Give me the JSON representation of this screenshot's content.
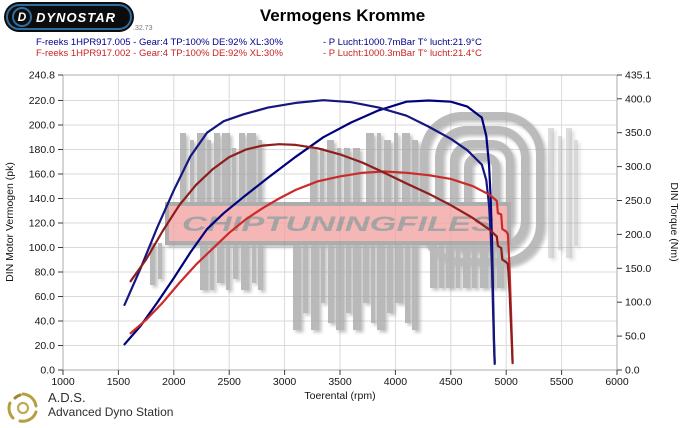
{
  "header": {
    "logo": {
      "wordmark": "DYNOSTAR",
      "first_letter": "D",
      "version": ".32.73"
    },
    "title": "Vermogens Kromme",
    "legend": [
      {
        "run": "F-reeks 1HPR917.005 - Gear:4 TP:100% DE:92% XL:30%",
        "conditions": "- P Lucht:1000.7mBar T° lucht:21.9°C",
        "color": "#00008b"
      },
      {
        "run": "F-reeks 1HPR917.002 - Gear:4 TP:100% DE:92% XL:30%",
        "conditions": "- P Lucht:1000.3mBar T° lucht:21.4°C",
        "color": "#cc2222"
      }
    ]
  },
  "watermark": {
    "text": "CHIPTUNINGFILES"
  },
  "footer": {
    "abbr": "A.D.S.",
    "name": "Advanced Dyno Station"
  },
  "chart_data": {
    "type": "line",
    "title": "Vermogens Kromme",
    "xlabel": "Toerental (rpm)",
    "ylabel_left": "DIN Motor Vermogen (pk)",
    "ylabel_right": "DIN Torque (Nm)",
    "x_min": 1000,
    "x_max": 6000,
    "power_max": 240.8,
    "torque_max": 435.1,
    "grid": true,
    "x_ticks": [
      "1000",
      "1500",
      "2000",
      "2500",
      "3000",
      "3500",
      "4000",
      "4500",
      "5000",
      "5500",
      "6000"
    ],
    "left_ticks": [
      "240.8",
      "220.0",
      "200.0",
      "180.0",
      "160.0",
      "140.0",
      "120.0",
      "100.0",
      "80.0",
      "60.0",
      "40.0",
      "20.0",
      "0.0"
    ],
    "right_ticks": [
      "435.1",
      "400.0",
      "350.0",
      "300.0",
      "250.0",
      "200.0",
      "150.0",
      "100.0",
      "50.0",
      "0.0"
    ],
    "series": [
      {
        "id": "run005-power",
        "name": "1HPR917.005 vermogen (pk)",
        "axis": "power",
        "color": "#00007d",
        "points": [
          [
            1555,
            21
          ],
          [
            1700,
            36
          ],
          [
            1850,
            55
          ],
          [
            2000,
            75
          ],
          [
            2150,
            96
          ],
          [
            2300,
            115
          ],
          [
            2450,
            128
          ],
          [
            2625,
            141
          ],
          [
            2850,
            157
          ],
          [
            3100,
            174
          ],
          [
            3350,
            190
          ],
          [
            3600,
            202
          ],
          [
            3850,
            212
          ],
          [
            4100,
            219
          ],
          [
            4300,
            220
          ],
          [
            4500,
            219
          ],
          [
            4650,
            215
          ],
          [
            4780,
            206
          ],
          [
            4820,
            191
          ],
          [
            4845,
            168
          ],
          [
            4860,
            140
          ],
          [
            4872,
            105
          ],
          [
            4882,
            60
          ],
          [
            4890,
            25
          ],
          [
            4896,
            6
          ]
        ]
      },
      {
        "id": "run005-torque",
        "name": "1HPR917.005 koppel (Nm)",
        "axis": "torque",
        "color": "#16167f",
        "points": [
          [
            1555,
            96
          ],
          [
            1700,
            150
          ],
          [
            1850,
            210
          ],
          [
            2000,
            265
          ],
          [
            2150,
            315
          ],
          [
            2300,
            350
          ],
          [
            2450,
            367
          ],
          [
            2625,
            377
          ],
          [
            2850,
            387
          ],
          [
            3100,
            394
          ],
          [
            3350,
            398
          ],
          [
            3600,
            395
          ],
          [
            3850,
            387
          ],
          [
            4100,
            375
          ],
          [
            4300,
            359
          ],
          [
            4500,
            341
          ],
          [
            4650,
            324
          ],
          [
            4780,
            303
          ],
          [
            4820,
            280
          ],
          [
            4845,
            244
          ],
          [
            4860,
            202
          ],
          [
            4872,
            151
          ],
          [
            4882,
            86
          ],
          [
            4890,
            36
          ],
          [
            4896,
            9
          ]
        ]
      },
      {
        "id": "run002-power",
        "name": "1HPR917.002 vermogen (pk)",
        "axis": "power",
        "color": "#cc2a2a",
        "points": [
          [
            1610,
            30
          ],
          [
            1750,
            41
          ],
          [
            1900,
            55
          ],
          [
            2050,
            71
          ],
          [
            2200,
            86
          ],
          [
            2350,
            99
          ],
          [
            2500,
            112
          ],
          [
            2650,
            123
          ],
          [
            2800,
            132
          ],
          [
            2950,
            140
          ],
          [
            3100,
            147
          ],
          [
            3300,
            154
          ],
          [
            3500,
            158
          ],
          [
            3700,
            161
          ],
          [
            3900,
            162
          ],
          [
            4100,
            161
          ],
          [
            4300,
            159
          ],
          [
            4500,
            156
          ],
          [
            4700,
            150
          ],
          [
            4850,
            143
          ],
          [
            4915,
            138
          ],
          [
            4925,
            128
          ],
          [
            4955,
            127
          ],
          [
            4965,
            115
          ],
          [
            5000,
            113
          ],
          [
            5015,
            111
          ],
          [
            5032,
            80
          ],
          [
            5048,
            35
          ],
          [
            5058,
            7
          ]
        ]
      },
      {
        "id": "run002-torque",
        "name": "1HPR917.002 koppel (Nm)",
        "axis": "torque",
        "color": "#8e1d1d",
        "points": [
          [
            1610,
            131
          ],
          [
            1750,
            163
          ],
          [
            1900,
            205
          ],
          [
            2050,
            243
          ],
          [
            2200,
            273
          ],
          [
            2350,
            296
          ],
          [
            2500,
            314
          ],
          [
            2650,
            325
          ],
          [
            2800,
            331
          ],
          [
            2950,
            333
          ],
          [
            3100,
            332
          ],
          [
            3300,
            327
          ],
          [
            3500,
            318
          ],
          [
            3700,
            306
          ],
          [
            3900,
            291
          ],
          [
            4100,
            275
          ],
          [
            4300,
            260
          ],
          [
            4500,
            243
          ],
          [
            4700,
            224
          ],
          [
            4850,
            207
          ],
          [
            4915,
            197
          ],
          [
            4925,
            183
          ],
          [
            4955,
            180
          ],
          [
            4965,
            163
          ],
          [
            5000,
            159
          ],
          [
            5015,
            156
          ],
          [
            5032,
            111
          ],
          [
            5048,
            49
          ],
          [
            5058,
            10
          ]
        ]
      }
    ]
  }
}
